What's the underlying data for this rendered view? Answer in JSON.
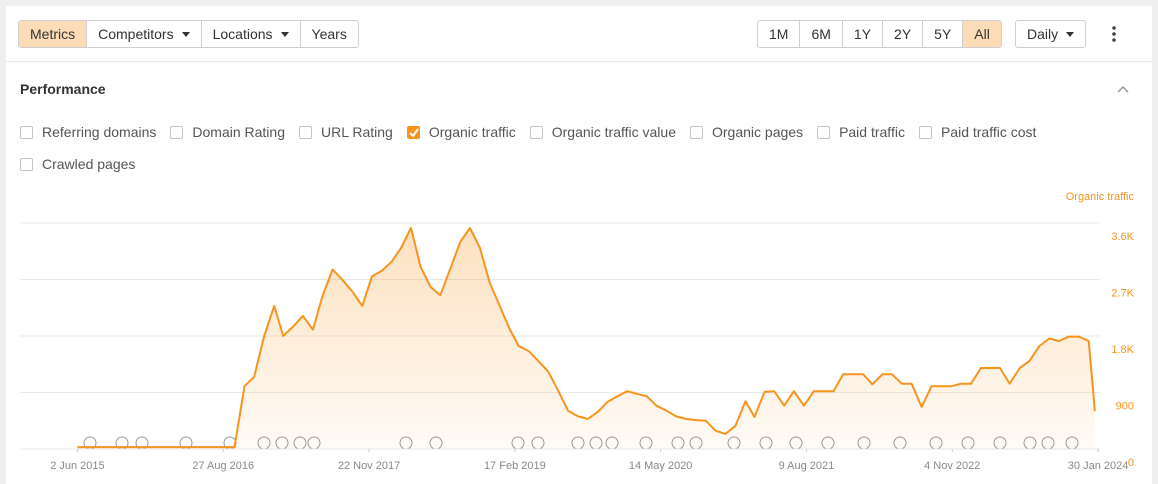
{
  "toolbar": {
    "tabs": [
      "Metrics",
      "Competitors",
      "Locations",
      "Years"
    ],
    "active_tab_index": 0,
    "ranges": [
      "1M",
      "6M",
      "1Y",
      "2Y",
      "5Y",
      "All"
    ],
    "active_range_index": 5,
    "interval": "Daily"
  },
  "section": {
    "title": "Performance",
    "checkboxes": [
      {
        "label": "Referring domains",
        "checked": false
      },
      {
        "label": "Domain Rating",
        "checked": false
      },
      {
        "label": "URL Rating",
        "checked": false
      },
      {
        "label": "Organic traffic",
        "checked": true
      },
      {
        "label": "Organic traffic value",
        "checked": false
      },
      {
        "label": "Organic pages",
        "checked": false
      },
      {
        "label": "Paid traffic",
        "checked": false
      },
      {
        "label": "Paid traffic cost",
        "checked": false
      },
      {
        "label": "Crawled pages",
        "checked": false
      }
    ]
  },
  "chart_data": {
    "type": "area",
    "y_label": "Organic traffic",
    "grid": true,
    "xlim": [
      "2014-12-06",
      "2024-02-05"
    ],
    "xticks": [
      {
        "value": "2015-06-02",
        "label": "2 Jun 2015"
      },
      {
        "value": "2016-08-27",
        "label": "27 Aug 2016"
      },
      {
        "value": "2017-11-22",
        "label": "22 Nov 2017"
      },
      {
        "value": "2019-02-17",
        "label": "17 Feb 2019"
      },
      {
        "value": "2020-05-14",
        "label": "14 May 2020"
      },
      {
        "value": "2021-08-09",
        "label": "9 Aug 2021"
      },
      {
        "value": "2022-11-04",
        "label": "4 Nov 2022"
      },
      {
        "value": "2024-01-30",
        "label": "30 Jan 2024"
      }
    ],
    "ylim": [
      0,
      3600
    ],
    "yticks": [
      0,
      900,
      {
        "value": 1800,
        "label": "1.8K"
      },
      {
        "value": 2700,
        "label": "2.7K"
      },
      {
        "value": 3600,
        "label": "3.6K"
      }
    ],
    "x": [
      "2015-06-02",
      "2016-01-01",
      "2016-06-01",
      "2016-09-01",
      "2016-10-01",
      "2016-11-01",
      "2016-12-01",
      "2017-01-01",
      "2017-02-01",
      "2017-03-01",
      "2017-04-01",
      "2017-05-01",
      "2017-06-01",
      "2017-07-01",
      "2017-08-01",
      "2017-09-01",
      "2017-10-01",
      "2017-11-01",
      "2017-12-01",
      "2018-01-01",
      "2018-02-01",
      "2018-03-01",
      "2018-04-01",
      "2018-05-01",
      "2018-06-01",
      "2018-07-01",
      "2018-08-01",
      "2018-09-01",
      "2018-10-01",
      "2018-11-01",
      "2018-12-01",
      "2019-01-01",
      "2019-02-01",
      "2019-03-01",
      "2019-04-01",
      "2019-05-01",
      "2019-06-01",
      "2019-07-01",
      "2019-08-01",
      "2019-09-01",
      "2019-10-01",
      "2019-11-01",
      "2019-12-01",
      "2020-01-01",
      "2020-02-01",
      "2020-03-01",
      "2020-04-01",
      "2020-05-01",
      "2020-06-01",
      "2020-07-01",
      "2020-08-01",
      "2020-09-01",
      "2020-10-01",
      "2020-11-01",
      "2020-12-01",
      "2021-01-01",
      "2021-02-01",
      "2021-03-01",
      "2021-04-01",
      "2021-05-01",
      "2021-06-01",
      "2021-07-01",
      "2021-08-01",
      "2021-09-01",
      "2021-10-01",
      "2021-11-01",
      "2021-12-01",
      "2022-01-01",
      "2022-02-01",
      "2022-03-01",
      "2022-04-01",
      "2022-05-01",
      "2022-06-01",
      "2022-07-01",
      "2022-08-01",
      "2022-09-01",
      "2022-10-01",
      "2022-11-01",
      "2022-12-01",
      "2023-01-01",
      "2023-02-01",
      "2023-03-01",
      "2023-04-01",
      "2023-05-01",
      "2023-06-01",
      "2023-07-01",
      "2023-08-01",
      "2023-09-01",
      "2023-10-01",
      "2023-11-01",
      "2023-12-01",
      "2024-01-01",
      "2024-01-15",
      "2024-01-20"
    ],
    "series": [
      {
        "name": "Organic traffic",
        "color": "#f7941d",
        "values": [
          30,
          30,
          30,
          30,
          30,
          1000,
          1150,
          1800,
          2280,
          1800,
          1950,
          2120,
          1900,
          2440,
          2860,
          2690,
          2510,
          2280,
          2750,
          2840,
          2990,
          3200,
          3520,
          2900,
          2580,
          2450,
          2870,
          3300,
          3520,
          3200,
          2650,
          2280,
          1910,
          1640,
          1560,
          1400,
          1230,
          930,
          610,
          520,
          480,
          590,
          750,
          840,
          920,
          880,
          840,
          690,
          610,
          520,
          480,
          460,
          450,
          290,
          240,
          370,
          760,
          510,
          910,
          920,
          690,
          920,
          690,
          920,
          920,
          920,
          1190,
          1190,
          1190,
          1030,
          1190,
          1190,
          1040,
          1040,
          670,
          1000,
          1000,
          1000,
          1040,
          1040,
          1290,
          1290,
          1290,
          1040,
          1290,
          1400,
          1640,
          1760,
          1720,
          1790,
          1790,
          1720,
          920,
          600
        ]
      }
    ]
  }
}
